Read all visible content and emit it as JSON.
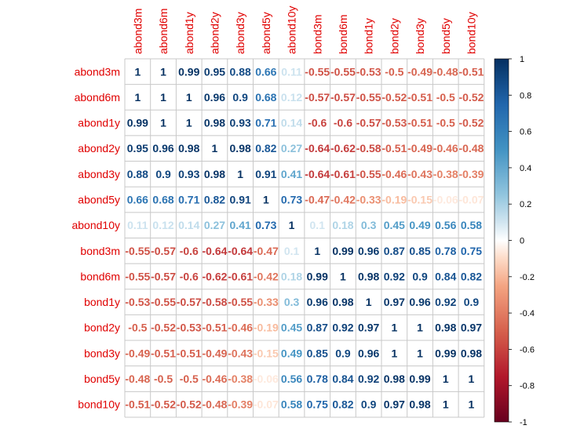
{
  "chart_data": {
    "type": "heatmap",
    "variables": [
      "abond3m",
      "abond6m",
      "abond1y",
      "abond2y",
      "abond3y",
      "abond5y",
      "abond10y",
      "bond3m",
      "bond6m",
      "bond1y",
      "bond2y",
      "bond3y",
      "bond5y",
      "bond10y"
    ],
    "cell_labels": [
      [
        "1",
        "1",
        "0.99",
        "0.95",
        "0.88",
        "0.66",
        "0.11",
        "-0.55",
        "-0.55",
        "-0.53",
        "-0.5",
        "-0.49",
        "-0.48",
        "-0.51"
      ],
      [
        "1",
        "1",
        "1",
        "0.96",
        "0.9",
        "0.68",
        "0.12",
        "-0.57",
        "-0.57",
        "-0.55",
        "-0.52",
        "-0.51",
        "-0.5",
        "-0.52"
      ],
      [
        "0.99",
        "1",
        "1",
        "0.98",
        "0.93",
        "0.71",
        "0.14",
        "-0.6",
        "-0.6",
        "-0.57",
        "-0.53",
        "-0.51",
        "-0.5",
        "-0.52"
      ],
      [
        "0.95",
        "0.96",
        "0.98",
        "1",
        "0.98",
        "0.82",
        "0.27",
        "-0.64",
        "-0.62",
        "-0.58",
        "-0.51",
        "-0.49",
        "-0.46",
        "-0.48"
      ],
      [
        "0.88",
        "0.9",
        "0.93",
        "0.98",
        "1",
        "0.91",
        "0.41",
        "-0.64",
        "-0.61",
        "-0.55",
        "-0.46",
        "-0.43",
        "-0.38",
        "-0.39"
      ],
      [
        "0.66",
        "0.68",
        "0.71",
        "0.82",
        "0.91",
        "1",
        "0.73",
        "-0.47",
        "-0.42",
        "-0.33",
        "-0.19",
        "-0.15",
        "-0.06",
        "-0.07"
      ],
      [
        "0.11",
        "0.12",
        "0.14",
        "0.27",
        "0.41",
        "0.73",
        "1",
        "0.1",
        "0.18",
        "0.3",
        "0.45",
        "0.49",
        "0.56",
        "0.58"
      ],
      [
        "-0.55",
        "-0.57",
        "-0.6",
        "-0.64",
        "-0.64",
        "-0.47",
        "0.1",
        "1",
        "0.99",
        "0.96",
        "0.87",
        "0.85",
        "0.78",
        "0.75"
      ],
      [
        "-0.55",
        "-0.57",
        "-0.6",
        "-0.62",
        "-0.61",
        "-0.42",
        "0.18",
        "0.99",
        "1",
        "0.98",
        "0.92",
        "0.9",
        "0.84",
        "0.82"
      ],
      [
        "-0.53",
        "-0.55",
        "-0.57",
        "-0.58",
        "-0.55",
        "-0.33",
        "0.3",
        "0.96",
        "0.98",
        "1",
        "0.97",
        "0.96",
        "0.92",
        "0.9"
      ],
      [
        "-0.5",
        "-0.52",
        "-0.53",
        "-0.51",
        "-0.46",
        "-0.19",
        "0.45",
        "0.87",
        "0.92",
        "0.97",
        "1",
        "1",
        "0.98",
        "0.97"
      ],
      [
        "-0.49",
        "-0.51",
        "-0.51",
        "-0.49",
        "-0.43",
        "-0.15",
        "0.49",
        "0.85",
        "0.9",
        "0.96",
        "1",
        "1",
        "0.99",
        "0.98"
      ],
      [
        "-0.48",
        "-0.5",
        "-0.5",
        "-0.46",
        "-0.38",
        "-0.06",
        "0.56",
        "0.78",
        "0.84",
        "0.92",
        "0.98",
        "0.99",
        "1",
        "1"
      ],
      [
        "-0.51",
        "-0.52",
        "-0.52",
        "-0.48",
        "-0.39",
        "-0.07",
        "0.58",
        "0.75",
        "0.82",
        "0.9",
        "0.97",
        "0.98",
        "1",
        "1"
      ]
    ],
    "color_scale": {
      "min": -1,
      "max": 1,
      "ticks": [
        "1",
        "0.8",
        "0.6",
        "0.4",
        "0.2",
        "0",
        "-0.2",
        "-0.4",
        "-0.6",
        "-0.8",
        "-1"
      ],
      "colors": {
        "-1": "#67001f",
        "-0.75": "#b2182b",
        "-0.5": "#d6604d",
        "-0.25": "#f4a582",
        "-0.1": "#fddbc7",
        "0": "#ffffff",
        "0.1": "#d1e5f0",
        "0.25": "#92c5de",
        "0.5": "#4393c3",
        "0.75": "#2166ac",
        "1": "#053061"
      }
    },
    "label_color": "#e00000",
    "grid": true,
    "legend_position": "right"
  }
}
